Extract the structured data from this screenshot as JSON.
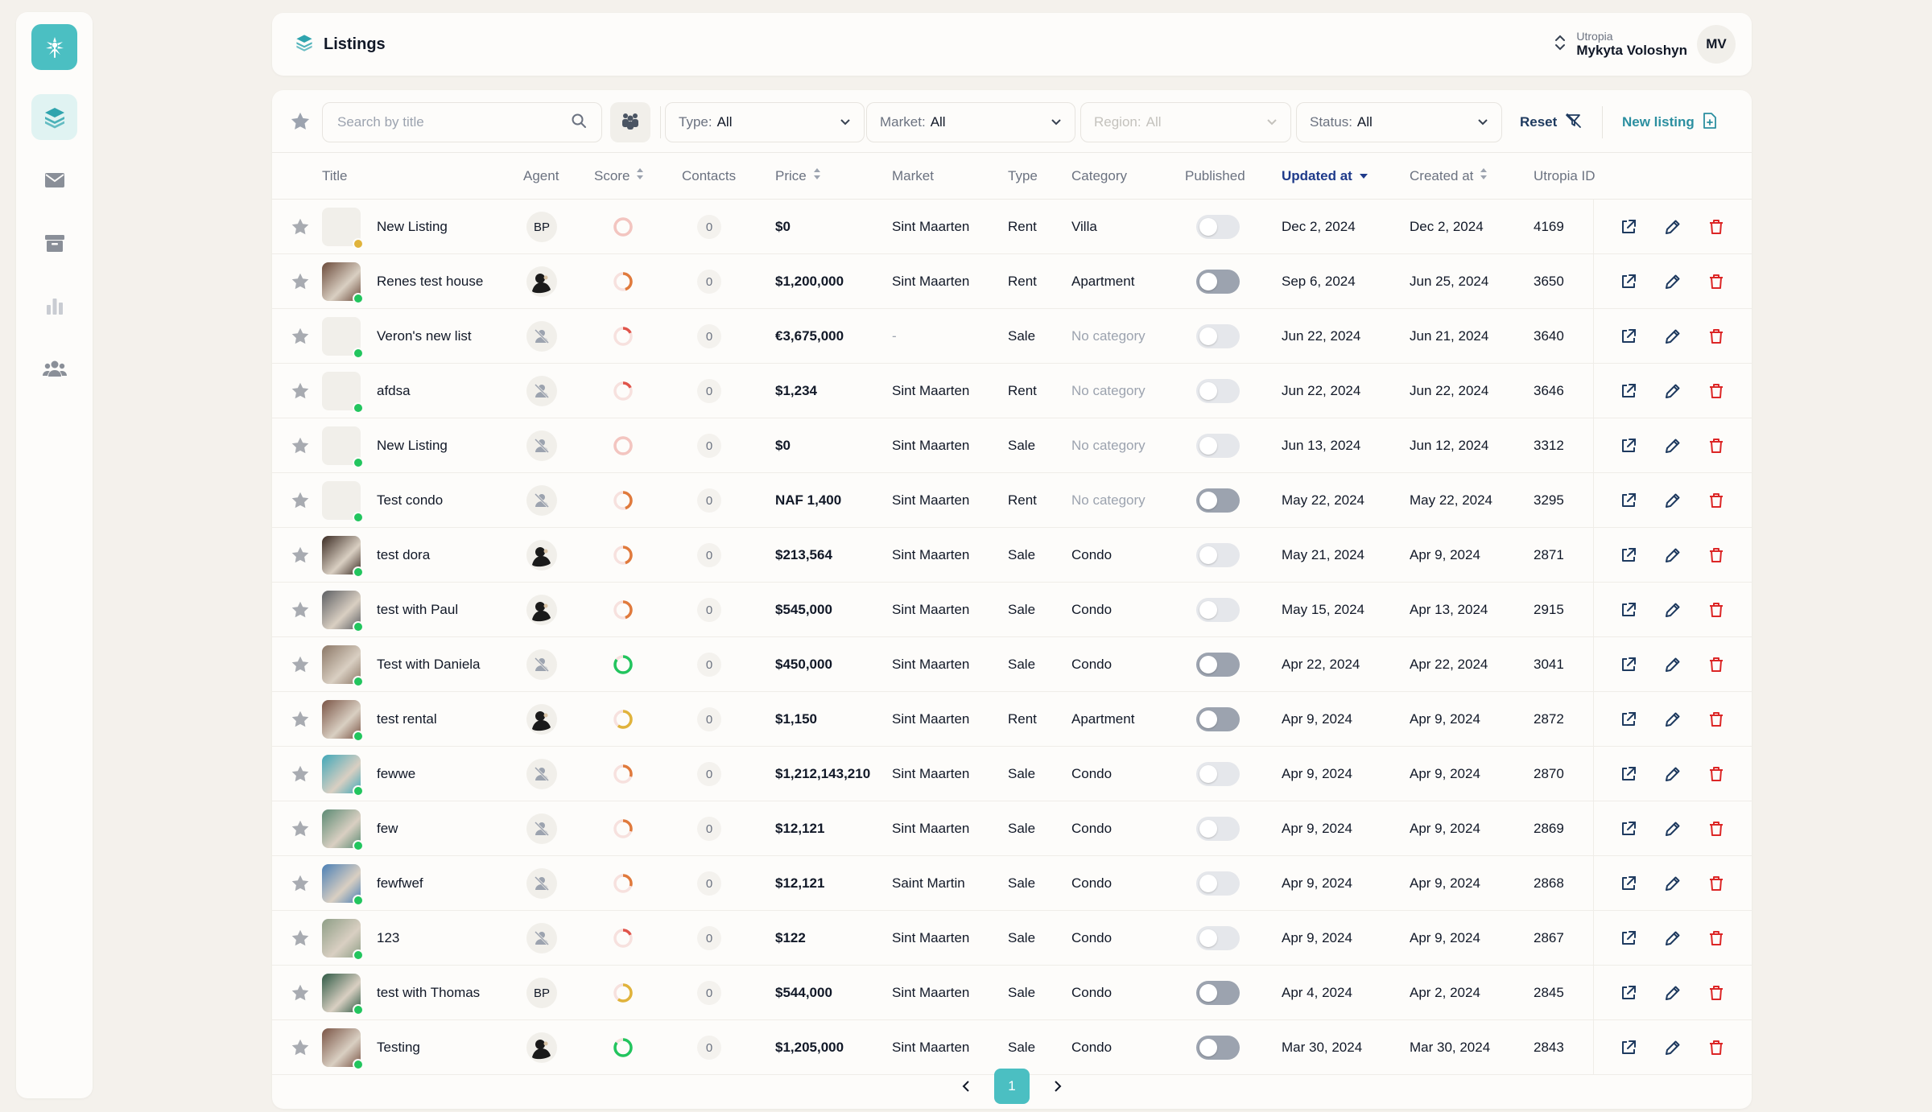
{
  "sidebar": {
    "logo_icon": "palm-tree-icon",
    "items": [
      {
        "icon": "layers-icon",
        "active": true
      },
      {
        "icon": "mail-icon",
        "active": false
      },
      {
        "icon": "archive-icon",
        "active": false
      },
      {
        "icon": "bar-chart-icon",
        "active": false
      },
      {
        "icon": "users-icon",
        "active": false
      }
    ]
  },
  "header": {
    "title": "Listings",
    "org": "Utropia",
    "user_name": "Mykyta Voloshyn",
    "user_initials": "MV"
  },
  "toolbar": {
    "search_placeholder": "Search by title",
    "filters": [
      {
        "label": "Type:",
        "value": "All"
      },
      {
        "label": "Market:",
        "value": "All"
      },
      {
        "label": "Region:",
        "value": "All",
        "disabled": true
      },
      {
        "label": "Status:",
        "value": "All"
      }
    ],
    "reset_label": "Reset",
    "new_label": "New listing"
  },
  "columns": {
    "title": "Title",
    "agent": "Agent",
    "score": "Score",
    "contacts": "Contacts",
    "price": "Price",
    "market": "Market",
    "type": "Type",
    "category": "Category",
    "published": "Published",
    "updated": "Updated at",
    "created": "Created at",
    "uid": "Utropia ID"
  },
  "colors": {
    "accent": "#4bbfc2",
    "delete": "#dc2626",
    "status_green": "#22c55e",
    "status_yellow": "#e0b33b",
    "toggle_on": "#9ca3af",
    "toggle_off": "#e5e7eb"
  },
  "rows": [
    {
      "title": "New Listing",
      "thumb": "empty",
      "status": "yellow",
      "agent": "BP",
      "score_color": "#f3c5c0",
      "score_pct": 0,
      "contacts": "0",
      "price": "$0",
      "market": "Sint Maarten",
      "type": "Rent",
      "category": "Villa",
      "category_muted": false,
      "published": false,
      "updated": "Dec 2, 2024",
      "created": "Dec 2, 2024",
      "uid": "4169"
    },
    {
      "title": "Renes test house",
      "thumb": "#6b4a3a",
      "status": "green",
      "agent": "photo",
      "score_color": "#e07a3c",
      "score_pct": 0.45,
      "contacts": "0",
      "price": "$1,200,000",
      "market": "Sint Maarten",
      "type": "Rent",
      "category": "Apartment",
      "category_muted": false,
      "published": true,
      "updated": "Sep 6, 2024",
      "created": "Jun 25, 2024",
      "uid": "3650"
    },
    {
      "title": "Veron's new list",
      "thumb": "empty",
      "status": "green",
      "agent": "none",
      "score_color": "#e0544a",
      "score_pct": 0.18,
      "contacts": "0",
      "price": "€3,675,000",
      "market": "-",
      "type": "Sale",
      "category": "No category",
      "category_muted": true,
      "published": false,
      "updated": "Jun 22, 2024",
      "created": "Jun 21, 2024",
      "uid": "3640"
    },
    {
      "title": "afdsa",
      "thumb": "empty",
      "status": "green",
      "agent": "none",
      "score_color": "#e0544a",
      "score_pct": 0.18,
      "contacts": "0",
      "price": "$1,234",
      "market": "Sint Maarten",
      "type": "Rent",
      "category": "No category",
      "category_muted": true,
      "published": false,
      "updated": "Jun 22, 2024",
      "created": "Jun 22, 2024",
      "uid": "3646"
    },
    {
      "title": "New Listing",
      "thumb": "empty",
      "status": "green",
      "agent": "none",
      "score_color": "#f3c5c0",
      "score_pct": 0,
      "contacts": "0",
      "price": "$0",
      "market": "Sint Maarten",
      "type": "Sale",
      "category": "No category",
      "category_muted": true,
      "published": false,
      "updated": "Jun 13, 2024",
      "created": "Jun 12, 2024",
      "uid": "3312"
    },
    {
      "title": "Test condo",
      "thumb": "empty",
      "status": "green",
      "agent": "none",
      "score_color": "#e07a3c",
      "score_pct": 0.45,
      "contacts": "0",
      "price": "NAF 1,400",
      "market": "Sint Maarten",
      "type": "Rent",
      "category": "No category",
      "category_muted": true,
      "published": true,
      "updated": "May 22, 2024",
      "created": "May 22, 2024",
      "uid": "3295"
    },
    {
      "title": "test dora",
      "thumb": "#3a2a22",
      "status": "green",
      "agent": "photo",
      "score_color": "#e07a3c",
      "score_pct": 0.45,
      "contacts": "0",
      "price": "$213,564",
      "market": "Sint Maarten",
      "type": "Sale",
      "category": "Condo",
      "category_muted": false,
      "published": false,
      "updated": "May 21, 2024",
      "created": "Apr 9, 2024",
      "uid": "2871"
    },
    {
      "title": "test with Paul",
      "thumb": "#5c5e62",
      "status": "green",
      "agent": "photo",
      "score_color": "#e07a3c",
      "score_pct": 0.45,
      "contacts": "0",
      "price": "$545,000",
      "market": "Sint Maarten",
      "type": "Sale",
      "category": "Condo",
      "category_muted": false,
      "published": false,
      "updated": "May 15, 2024",
      "created": "Apr 13, 2024",
      "uid": "2915"
    },
    {
      "title": "Test with Daniela",
      "thumb": "#8b7766",
      "status": "green",
      "agent": "none",
      "score_color": "#22c55e",
      "score_pct": 0.85,
      "contacts": "0",
      "price": "$450,000",
      "market": "Sint Maarten",
      "type": "Sale",
      "category": "Condo",
      "category_muted": false,
      "published": true,
      "updated": "Apr 22, 2024",
      "created": "Apr 22, 2024",
      "uid": "3041"
    },
    {
      "title": "test rental",
      "thumb": "#7a5445",
      "status": "green",
      "agent": "photo",
      "score_color": "#e0b33b",
      "score_pct": 0.6,
      "contacts": "0",
      "price": "$1,150",
      "market": "Sint Maarten",
      "type": "Rent",
      "category": "Apartment",
      "category_muted": false,
      "published": true,
      "updated": "Apr 9, 2024",
      "created": "Apr 9, 2024",
      "uid": "2872"
    },
    {
      "title": "fewwe",
      "thumb": "#3fa7b8",
      "status": "green",
      "agent": "none",
      "score_color": "#e07a3c",
      "score_pct": 0.3,
      "contacts": "0",
      "price": "$1,212,143,210",
      "market": "Sint Maarten",
      "type": "Sale",
      "category": "Condo",
      "category_muted": false,
      "published": false,
      "updated": "Apr 9, 2024",
      "created": "Apr 9, 2024",
      "uid": "2870"
    },
    {
      "title": "few",
      "thumb": "#5b8a73",
      "status": "green",
      "agent": "none",
      "score_color": "#e07a3c",
      "score_pct": 0.3,
      "contacts": "0",
      "price": "$12,121",
      "market": "Sint Maarten",
      "type": "Sale",
      "category": "Condo",
      "category_muted": false,
      "published": false,
      "updated": "Apr 9, 2024",
      "created": "Apr 9, 2024",
      "uid": "2869"
    },
    {
      "title": "fewfwef",
      "thumb": "#4a7fb5",
      "status": "green",
      "agent": "none",
      "score_color": "#e07a3c",
      "score_pct": 0.3,
      "contacts": "0",
      "price": "$12,121",
      "market": "Saint Martin",
      "type": "Sale",
      "category": "Condo",
      "category_muted": false,
      "published": false,
      "updated": "Apr 9, 2024",
      "created": "Apr 9, 2024",
      "uid": "2868"
    },
    {
      "title": "123",
      "thumb": "#8e9e86",
      "status": "green",
      "agent": "none",
      "score_color": "#e0544a",
      "score_pct": 0.18,
      "contacts": "0",
      "price": "$122",
      "market": "Sint Maarten",
      "type": "Sale",
      "category": "Condo",
      "category_muted": false,
      "published": false,
      "updated": "Apr 9, 2024",
      "created": "Apr 9, 2024",
      "uid": "2867"
    },
    {
      "title": "test with Thomas",
      "thumb": "#2f5a45",
      "status": "green",
      "agent": "BP",
      "score_color": "#e0b33b",
      "score_pct": 0.6,
      "contacts": "0",
      "price": "$544,000",
      "market": "Sint Maarten",
      "type": "Sale",
      "category": "Condo",
      "category_muted": false,
      "published": true,
      "updated": "Apr 4, 2024",
      "created": "Apr 2, 2024",
      "uid": "2845"
    },
    {
      "title": "Testing",
      "thumb": "#7a5445",
      "status": "green",
      "agent": "photo",
      "score_color": "#22c55e",
      "score_pct": 0.85,
      "contacts": "0",
      "price": "$1,205,000",
      "market": "Sint Maarten",
      "type": "Sale",
      "category": "Condo",
      "category_muted": false,
      "published": true,
      "updated": "Mar 30, 2024",
      "created": "Mar 30, 2024",
      "uid": "2843"
    }
  ],
  "pagination": {
    "current": "1"
  }
}
